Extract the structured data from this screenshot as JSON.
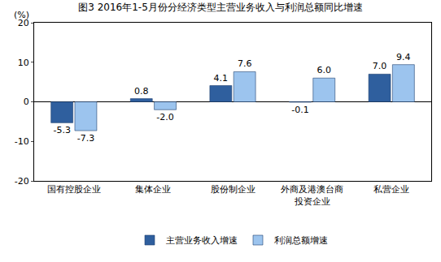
{
  "chart_data": {
    "type": "bar",
    "title": "图3 2016年1-5月份分经济类型主营业务收入与利润总额同比增速",
    "y_label": "(%)",
    "categories": [
      "国有控股企业",
      "集体企业",
      "股份制企业",
      "外商及港澳台商\n投资企业",
      "私营企业"
    ],
    "series": [
      {
        "name": "主营业务收入增速",
        "color": "#2f5f9e",
        "values": [
          -5.3,
          0.8,
          4.1,
          -0.1,
          7.0
        ],
        "value_labels": [
          "-5.3",
          "0.8",
          "4.1",
          "-0.1",
          "7.0"
        ]
      },
      {
        "name": "利润总额增速",
        "color": "#9cc4ee",
        "values": [
          -7.3,
          -2.0,
          7.6,
          6.0,
          9.4
        ],
        "value_labels": [
          "-7.3",
          "-2.0",
          "7.6",
          "6.0",
          "9.4"
        ]
      }
    ],
    "ylim": [
      -20,
      20
    ],
    "yticks": [
      -20,
      -10,
      0,
      10,
      20
    ],
    "grid": false,
    "legend": "bottom",
    "data_labels": true
  }
}
